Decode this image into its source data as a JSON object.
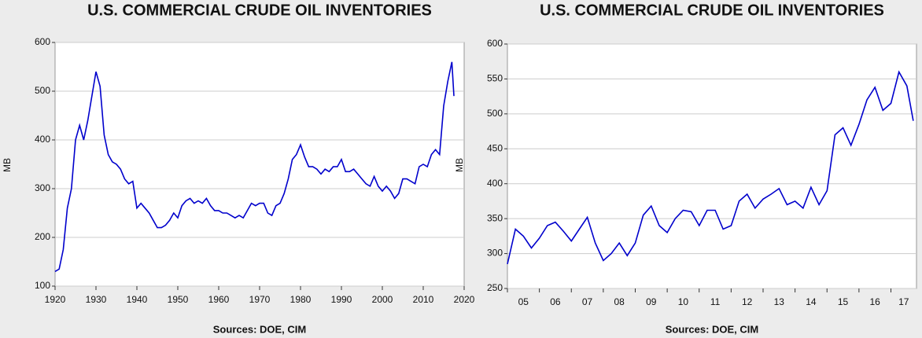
{
  "chart_data": [
    {
      "type": "line",
      "title": "U.S. COMMERCIAL CRUDE OIL INVENTORIES",
      "ylabel": "MB",
      "annotation": "Sources:  DOE, CIM",
      "color": "#0000cc",
      "grid": true,
      "xlim": [
        1920,
        2020
      ],
      "ylim": [
        100,
        600
      ],
      "xticks": [
        1920,
        1930,
        1940,
        1950,
        1960,
        1970,
        1980,
        1990,
        2000,
        2010,
        2020
      ],
      "yticks": [
        100,
        200,
        300,
        400,
        500,
        600
      ],
      "x": [
        1920,
        1921,
        1922,
        1923,
        1924,
        1925,
        1926,
        1927,
        1928,
        1929,
        1930,
        1931,
        1932,
        1933,
        1934,
        1935,
        1936,
        1937,
        1938,
        1939,
        1940,
        1941,
        1942,
        1943,
        1944,
        1945,
        1946,
        1947,
        1948,
        1949,
        1950,
        1951,
        1952,
        1953,
        1954,
        1955,
        1956,
        1957,
        1958,
        1959,
        1960,
        1961,
        1962,
        1963,
        1964,
        1965,
        1966,
        1967,
        1968,
        1969,
        1970,
        1971,
        1972,
        1973,
        1974,
        1975,
        1976,
        1977,
        1978,
        1979,
        1980,
        1981,
        1982,
        1983,
        1984,
        1985,
        1986,
        1987,
        1988,
        1989,
        1990,
        1991,
        1992,
        1993,
        1994,
        1995,
        1996,
        1997,
        1998,
        1999,
        2000,
        2001,
        2002,
        2003,
        2004,
        2005,
        2006,
        2007,
        2008,
        2009,
        2010,
        2011,
        2012,
        2013,
        2014,
        2015,
        2016,
        2017,
        2017.5
      ],
      "values": [
        130,
        135,
        175,
        260,
        300,
        400,
        430,
        400,
        440,
        490,
        540,
        510,
        410,
        370,
        355,
        350,
        340,
        320,
        310,
        315,
        260,
        270,
        260,
        250,
        235,
        220,
        220,
        225,
        235,
        250,
        240,
        265,
        275,
        280,
        270,
        275,
        270,
        280,
        265,
        255,
        255,
        250,
        250,
        245,
        240,
        245,
        240,
        255,
        270,
        265,
        270,
        270,
        250,
        245,
        265,
        270,
        290,
        320,
        360,
        370,
        390,
        365,
        345,
        345,
        340,
        330,
        340,
        335,
        345,
        345,
        360,
        335,
        335,
        340,
        330,
        320,
        310,
        305,
        325,
        305,
        295,
        305,
        295,
        280,
        290,
        320,
        320,
        315,
        310,
        345,
        350,
        345,
        370,
        380,
        370,
        470,
        520,
        560,
        490
      ]
    },
    {
      "type": "line",
      "title": "U.S. COMMERCIAL CRUDE OIL INVENTORIES",
      "ylabel": "MB",
      "annotation": "Sources:  DOE, CIM",
      "color": "#0000cc",
      "grid": true,
      "xlim": [
        2005,
        2017.8
      ],
      "ylim": [
        250,
        600
      ],
      "xtick_label_position": "between",
      "xticks": [
        {
          "value": 2005,
          "label": "05"
        },
        {
          "value": 2006,
          "label": "06"
        },
        {
          "value": 2007,
          "label": "07"
        },
        {
          "value": 2008,
          "label": "08"
        },
        {
          "value": 2009,
          "label": "09"
        },
        {
          "value": 2010,
          "label": "10"
        },
        {
          "value": 2011,
          "label": "11"
        },
        {
          "value": 2012,
          "label": "12"
        },
        {
          "value": 2013,
          "label": "13"
        },
        {
          "value": 2014,
          "label": "14"
        },
        {
          "value": 2015,
          "label": "15"
        },
        {
          "value": 2016,
          "label": "16"
        },
        {
          "value": 2017,
          "label": "17"
        }
      ],
      "yticks": [
        250,
        300,
        350,
        400,
        450,
        500,
        550,
        600
      ],
      "x": [
        2005,
        2005.25,
        2005.5,
        2005.75,
        2006,
        2006.25,
        2006.5,
        2006.75,
        2007,
        2007.25,
        2007.5,
        2007.75,
        2008,
        2008.25,
        2008.5,
        2008.75,
        2009,
        2009.25,
        2009.5,
        2009.75,
        2010,
        2010.25,
        2010.5,
        2010.75,
        2011,
        2011.25,
        2011.5,
        2011.75,
        2012,
        2012.25,
        2012.5,
        2012.75,
        2013,
        2013.25,
        2013.5,
        2013.75,
        2014,
        2014.25,
        2014.5,
        2014.75,
        2015,
        2015.25,
        2015.5,
        2015.75,
        2016,
        2016.25,
        2016.5,
        2016.75,
        2017,
        2017.25,
        2017.5,
        2017.7
      ],
      "values": [
        285,
        335,
        325,
        308,
        322,
        340,
        345,
        332,
        318,
        335,
        352,
        315,
        290,
        300,
        315,
        297,
        315,
        355,
        368,
        340,
        330,
        350,
        362,
        360,
        340,
        362,
        362,
        335,
        340,
        375,
        385,
        365,
        378,
        385,
        393,
        370,
        375,
        365,
        395,
        370,
        390,
        470,
        480,
        455,
        485,
        520,
        538,
        505,
        515,
        560,
        540,
        490
      ]
    }
  ]
}
